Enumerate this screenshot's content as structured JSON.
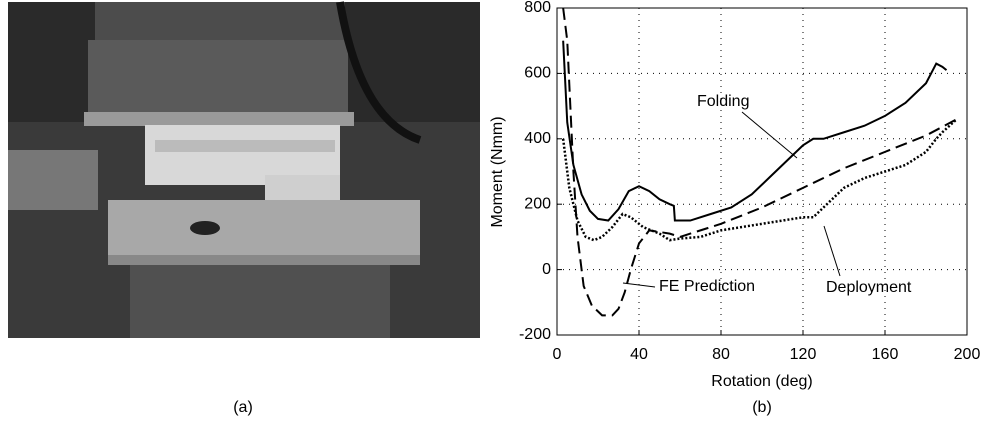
{
  "panel_a": {
    "caption": "(a)"
  },
  "chart_data": {
    "type": "line",
    "caption": "(b)",
    "x_label": "Rotation (deg)",
    "y_label": "Moment (Nmm)",
    "xlim": [
      0,
      200
    ],
    "ylim": [
      -200,
      800
    ],
    "xticks": [
      0,
      40,
      80,
      120,
      160,
      200
    ],
    "yticks": [
      -200,
      0,
      200,
      400,
      600,
      800
    ],
    "grid": true,
    "annotations": [
      {
        "text": "Folding"
      },
      {
        "text": "FE Prediction"
      },
      {
        "text": "Deployment"
      }
    ],
    "series": [
      {
        "name": "Folding",
        "color": "#000000",
        "style": "solid",
        "x": [
          3,
          5,
          8,
          12,
          16,
          20,
          25,
          30,
          35,
          40,
          45,
          50,
          55,
          57,
          57.5,
          65,
          75,
          85,
          95,
          105,
          115,
          120,
          125,
          130,
          140,
          150,
          160,
          170,
          180,
          185,
          188,
          190
        ],
        "values": [
          700,
          450,
          320,
          230,
          180,
          155,
          150,
          185,
          240,
          255,
          240,
          215,
          200,
          195,
          150,
          150,
          170,
          190,
          230,
          290,
          350,
          380,
          400,
          400,
          420,
          440,
          470,
          510,
          570,
          630,
          620,
          610
        ]
      },
      {
        "name": "Deployment",
        "color": "#000000",
        "style": "dotted",
        "x": [
          3,
          6,
          10,
          14,
          18,
          22,
          27,
          32,
          36,
          42,
          50,
          55,
          60,
          70,
          80,
          90,
          100,
          110,
          120,
          125,
          130,
          140,
          150,
          160,
          170,
          180,
          185,
          188,
          195
        ],
        "values": [
          400,
          250,
          150,
          100,
          90,
          100,
          130,
          170,
          160,
          130,
          110,
          90,
          95,
          100,
          120,
          130,
          140,
          150,
          160,
          160,
          190,
          250,
          280,
          300,
          320,
          360,
          400,
          420,
          460
        ]
      },
      {
        "name": "FE Prediction",
        "color": "#000000",
        "style": "dashed",
        "x": [
          3,
          5,
          8,
          10,
          13,
          17,
          22,
          27,
          30,
          33,
          36,
          40,
          45,
          55,
          60,
          80,
          100,
          120,
          140,
          160,
          180,
          195
        ],
        "values": [
          800,
          700,
          300,
          100,
          -50,
          -110,
          -140,
          -140,
          -120,
          -70,
          0,
          80,
          120,
          110,
          100,
          140,
          190,
          250,
          310,
          360,
          410,
          460
        ]
      }
    ]
  }
}
